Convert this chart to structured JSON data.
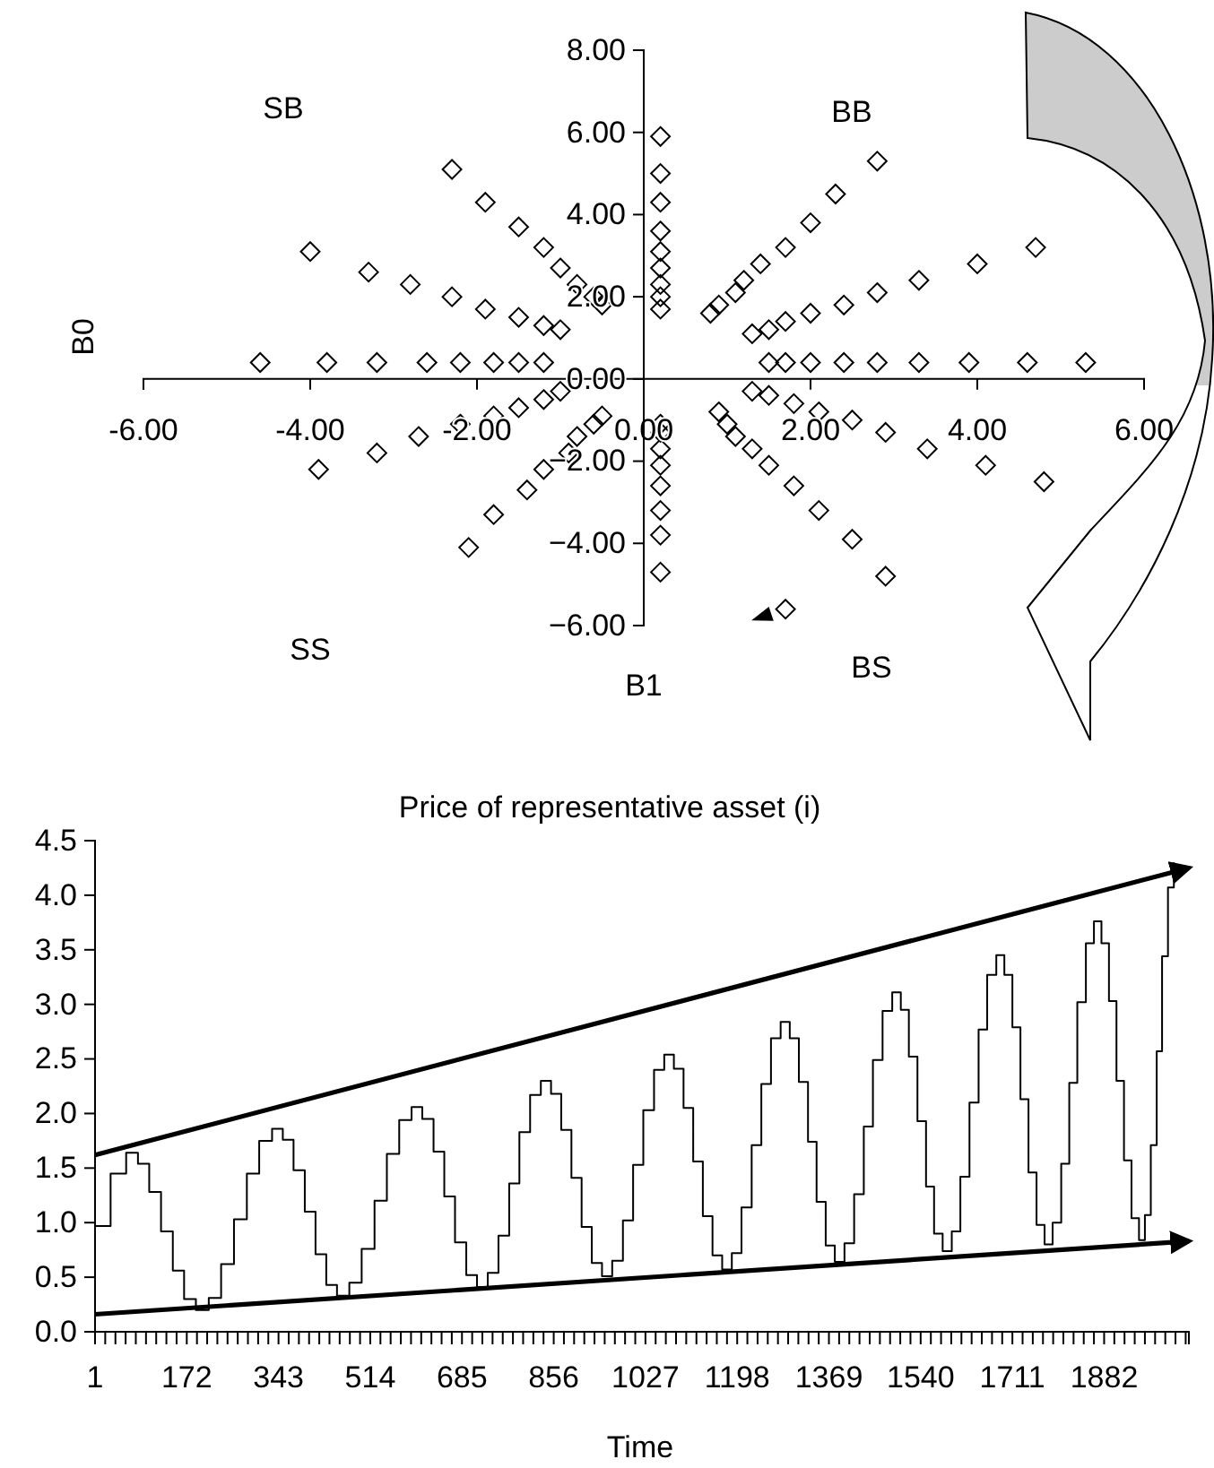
{
  "chart_data": [
    {
      "type": "scatter",
      "xlabel": "B1",
      "ylabel": "B0",
      "marker": "diamond",
      "annotations": [
        "SB",
        "BB",
        "SS",
        "BS"
      ],
      "xlim": [
        -6,
        6
      ],
      "ylim": [
        -6,
        8
      ],
      "xticks": [
        {
          "value": -6,
          "label": "-6.00"
        },
        {
          "value": -4,
          "label": "-4.00"
        },
        {
          "value": -2,
          "label": "-2.00"
        },
        {
          "value": 0,
          "label": "0.00"
        },
        {
          "value": 2,
          "label": "2.00"
        },
        {
          "value": 4,
          "label": "4.00"
        },
        {
          "value": 6,
          "label": "6.00"
        }
      ],
      "yticks": [
        {
          "value": -6,
          "label": "−6.00"
        },
        {
          "value": -4,
          "label": "−4.00"
        },
        {
          "value": -2,
          "label": "−2.00"
        },
        {
          "value": 0,
          "label": "0.00"
        },
        {
          "value": 2,
          "label": "2.00"
        },
        {
          "value": 4,
          "label": "4.00"
        },
        {
          "value": 6,
          "label": "6.00"
        },
        {
          "value": 8,
          "label": "8.00"
        }
      ],
      "series": [
        {
          "color": "#000000",
          "x": [
            0.2,
            0.8,
            1.3,
            1.5,
            1.3,
            0.9,
            0.2,
            -0.5,
            -1.0,
            -1.2,
            -1.0,
            -0.5,
            0.2,
            0.9,
            1.5,
            1.7,
            1.5,
            1.0,
            0.2,
            -0.6,
            -1.2,
            -1.5,
            -1.2,
            -0.6,
            0.2,
            1.1,
            1.7,
            2.0,
            1.8,
            1.1,
            0.2,
            -0.8,
            -1.5,
            -1.8,
            -1.5,
            -0.8,
            0.2,
            1.2,
            2.0,
            2.4,
            2.1,
            1.3,
            0.2,
            -0.9,
            -1.8,
            -2.2,
            -1.9,
            -1.0,
            0.2,
            1.4,
            2.4,
            2.8,
            2.5,
            1.5,
            0.2,
            -1.2,
            -2.2,
            -2.6,
            -2.3,
            -1.2,
            0.2,
            1.7,
            2.8,
            3.3,
            2.9,
            1.8,
            0.2,
            -1.4,
            -2.7,
            -3.2,
            -2.8,
            -1.5,
            0.2,
            2.0,
            3.3,
            3.9,
            3.4,
            2.1,
            0.2,
            -1.8,
            -3.2,
            -3.8,
            -3.3,
            -1.9,
            0.2,
            2.3,
            4.0,
            4.6,
            4.1,
            2.5,
            0.2,
            -2.1,
            -3.9,
            -4.6,
            -4.0,
            -2.3,
            0.2,
            2.8,
            4.7,
            5.3,
            4.8,
            2.9,
            1.7
          ],
          "values": [
            1.7,
            1.6,
            1.1,
            0.4,
            -0.3,
            -0.8,
            -1.1,
            -0.9,
            -0.3,
            0.4,
            1.2,
            1.8,
            2.0,
            1.8,
            1.2,
            0.4,
            -0.4,
            -1.1,
            -1.3,
            -1.1,
            -0.5,
            0.4,
            1.3,
            2.0,
            2.3,
            2.1,
            1.4,
            0.4,
            -0.6,
            -1.4,
            -1.7,
            -1.4,
            -0.7,
            0.4,
            1.5,
            2.3,
            2.7,
            2.4,
            1.6,
            0.4,
            -0.8,
            -1.7,
            -2.1,
            -1.8,
            -0.9,
            0.4,
            1.7,
            2.7,
            3.1,
            2.8,
            1.8,
            0.4,
            -1.0,
            -2.1,
            -2.6,
            -2.2,
            -1.1,
            0.4,
            2.0,
            3.2,
            3.6,
            3.2,
            2.1,
            0.4,
            -1.3,
            -2.6,
            -3.2,
            -2.7,
            -1.4,
            0.4,
            2.3,
            3.7,
            4.3,
            3.8,
            2.4,
            0.4,
            -1.7,
            -3.2,
            -3.8,
            -3.3,
            -1.8,
            0.4,
            2.6,
            4.3,
            5.0,
            4.5,
            2.8,
            0.4,
            -2.1,
            -3.9,
            -4.7,
            -4.1,
            -2.2,
            0.4,
            3.1,
            5.1,
            5.9,
            5.3,
            3.2,
            0.4,
            -2.5,
            -4.8,
            -5.6
          ]
        }
      ]
    },
    {
      "type": "step",
      "title": "Price of representative asset (i)",
      "xlabel": "Time",
      "xlim": [
        1,
        2040
      ],
      "ylim": [
        0,
        4.5
      ],
      "xticks": [
        1,
        {
          "value": 20,
          "label": null
        },
        {
          "value": 39,
          "label": null
        },
        {
          "value": 58,
          "label": null
        },
        {
          "value": 77,
          "label": null
        },
        {
          "value": 96,
          "label": null
        },
        {
          "value": 115,
          "label": null
        },
        {
          "value": 134,
          "label": null
        },
        {
          "value": 153,
          "label": null
        },
        172,
        {
          "value": 191,
          "label": null
        },
        {
          "value": 210,
          "label": null
        },
        {
          "value": 229,
          "label": null
        },
        {
          "value": 248,
          "label": null
        },
        {
          "value": 267,
          "label": null
        },
        {
          "value": 286,
          "label": null
        },
        {
          "value": 305,
          "label": null
        },
        {
          "value": 324,
          "label": null
        },
        343,
        {
          "value": 362,
          "label": null
        },
        {
          "value": 381,
          "label": null
        },
        {
          "value": 400,
          "label": null
        },
        {
          "value": 419,
          "label": null
        },
        {
          "value": 438,
          "label": null
        },
        {
          "value": 457,
          "label": null
        },
        {
          "value": 476,
          "label": null
        },
        {
          "value": 495,
          "label": null
        },
        514,
        {
          "value": 533,
          "label": null
        },
        {
          "value": 552,
          "label": null
        },
        {
          "value": 571,
          "label": null
        },
        {
          "value": 590,
          "label": null
        },
        {
          "value": 609,
          "label": null
        },
        {
          "value": 628,
          "label": null
        },
        {
          "value": 647,
          "label": null
        },
        {
          "value": 666,
          "label": null
        },
        685,
        {
          "value": 704,
          "label": null
        },
        {
          "value": 723,
          "label": null
        },
        {
          "value": 742,
          "label": null
        },
        {
          "value": 761,
          "label": null
        },
        {
          "value": 780,
          "label": null
        },
        {
          "value": 799,
          "label": null
        },
        {
          "value": 818,
          "label": null
        },
        {
          "value": 837,
          "label": null
        },
        856,
        {
          "value": 875,
          "label": null
        },
        {
          "value": 894,
          "label": null
        },
        {
          "value": 913,
          "label": null
        },
        {
          "value": 932,
          "label": null
        },
        {
          "value": 951,
          "label": null
        },
        {
          "value": 970,
          "label": null
        },
        {
          "value": 989,
          "label": null
        },
        {
          "value": 1008,
          "label": null
        },
        1027,
        {
          "value": 1046,
          "label": null
        },
        {
          "value": 1065,
          "label": null
        },
        {
          "value": 1084,
          "label": null
        },
        {
          "value": 1103,
          "label": null
        },
        {
          "value": 1122,
          "label": null
        },
        {
          "value": 1141,
          "label": null
        },
        {
          "value": 1160,
          "label": null
        },
        {
          "value": 1179,
          "label": null
        },
        1198,
        {
          "value": 1217,
          "label": null
        },
        {
          "value": 1236,
          "label": null
        },
        {
          "value": 1255,
          "label": null
        },
        {
          "value": 1274,
          "label": null
        },
        {
          "value": 1293,
          "label": null
        },
        {
          "value": 1312,
          "label": null
        },
        {
          "value": 1331,
          "label": null
        },
        {
          "value": 1350,
          "label": null
        },
        1369,
        {
          "value": 1388,
          "label": null
        },
        {
          "value": 1407,
          "label": null
        },
        {
          "value": 1426,
          "label": null
        },
        {
          "value": 1445,
          "label": null
        },
        {
          "value": 1464,
          "label": null
        },
        {
          "value": 1483,
          "label": null
        },
        {
          "value": 1502,
          "label": null
        },
        {
          "value": 1521,
          "label": null
        },
        1540,
        {
          "value": 1559,
          "label": null
        },
        {
          "value": 1578,
          "label": null
        },
        {
          "value": 1597,
          "label": null
        },
        {
          "value": 1616,
          "label": null
        },
        {
          "value": 1635,
          "label": null
        },
        {
          "value": 1654,
          "label": null
        },
        {
          "value": 1673,
          "label": null
        },
        {
          "value": 1692,
          "label": null
        },
        1711,
        {
          "value": 1730,
          "label": null
        },
        {
          "value": 1749,
          "label": null
        },
        {
          "value": 1768,
          "label": null
        },
        {
          "value": 1787,
          "label": null
        },
        {
          "value": 1806,
          "label": null
        },
        {
          "value": 1825,
          "label": null
        },
        {
          "value": 1844,
          "label": null
        },
        {
          "value": 1863,
          "label": null
        },
        1882,
        {
          "value": 1901,
          "label": null
        },
        {
          "value": 1920,
          "label": null
        },
        {
          "value": 1939,
          "label": null
        },
        {
          "value": 1958,
          "label": null
        },
        {
          "value": 1977,
          "label": null
        },
        {
          "value": 1996,
          "label": null
        },
        {
          "value": 2015,
          "label": null
        },
        {
          "value": 2034,
          "label": null
        }
      ],
      "yticks": [
        {
          "value": 0,
          "label": "0.0"
        },
        0.5,
        {
          "value": 1,
          "label": "1.0"
        },
        1.5,
        {
          "value": 2,
          "label": "2.0"
        },
        2.5,
        {
          "value": 3,
          "label": "3.0"
        },
        3.5,
        {
          "value": 4,
          "label": "4.0"
        },
        4.5
      ],
      "series": [
        {
          "color": "#000000",
          "x": [
            1,
            30,
            59,
            81,
            102,
            124,
            146,
            167,
            189,
            213,
            236,
            260,
            284,
            307,
            331,
            351,
            371,
            392,
            412,
            432,
            452,
            475,
            498,
            522,
            545,
            568,
            591,
            611,
            632,
            652,
            672,
            693,
            713,
            733,
            753,
            773,
            792,
            812,
            832,
            851,
            870,
            889,
            908,
            927,
            946,
            965,
            985,
            1004,
            1023,
            1043,
            1062,
            1080,
            1098,
            1116,
            1134,
            1152,
            1170,
            1188,
            1206,
            1225,
            1243,
            1261,
            1279,
            1296,
            1313,
            1330,
            1346,
            1363,
            1380,
            1398,
            1416,
            1434,
            1451,
            1469,
            1487,
            1503,
            1518,
            1534,
            1550,
            1565,
            1581,
            1598,
            1614,
            1631,
            1648,
            1664,
            1681,
            1696,
            1711,
            1726,
            1741,
            1756,
            1771,
            1786,
            1802,
            1817,
            1832,
            1848,
            1863,
            1877,
            1891,
            1905,
            1919,
            1933,
            1947,
            1958,
            1969,
            1980,
            1990,
            2001,
            2012
          ],
          "values": [
            0.97,
            1.45,
            1.64,
            1.54,
            1.28,
            0.92,
            0.56,
            0.3,
            0.2,
            0.31,
            0.62,
            1.03,
            1.45,
            1.75,
            1.86,
            1.76,
            1.48,
            1.1,
            0.71,
            0.43,
            0.33,
            0.45,
            0.76,
            1.2,
            1.63,
            1.94,
            2.06,
            1.95,
            1.65,
            1.24,
            0.82,
            0.52,
            0.41,
            0.54,
            0.88,
            1.36,
            1.83,
            2.17,
            2.3,
            2.18,
            1.85,
            1.41,
            0.96,
            0.63,
            0.51,
            0.65,
            1.02,
            1.53,
            2.03,
            2.4,
            2.54,
            2.41,
            2.05,
            1.56,
            1.06,
            0.7,
            0.57,
            0.72,
            1.14,
            1.71,
            2.27,
            2.69,
            2.84,
            2.69,
            2.29,
            1.74,
            1.19,
            0.79,
            0.64,
            0.81,
            1.26,
            1.88,
            2.49,
            2.94,
            3.11,
            2.95,
            2.52,
            1.93,
            1.33,
            0.9,
            0.74,
            0.92,
            1.42,
            2.1,
            2.77,
            3.27,
            3.45,
            3.27,
            2.79,
            2.13,
            1.46,
            0.98,
            0.8,
            1.0,
            1.54,
            2.28,
            3.02,
            3.56,
            3.76,
            3.56,
            3.03,
            2.3,
            1.57,
            1.04,
            0.84,
            1.07,
            1.71,
            2.57,
            3.44,
            4.07,
            4.3
          ]
        },
        {
          "type": "line",
          "color": "#000000",
          "x": [
            1,
            2040
          ],
          "values": [
            1.62,
            4.25
          ]
        },
        {
          "type": "line",
          "color": "#000000",
          "x": [
            1,
            2040
          ],
          "values": [
            0.16,
            0.83
          ]
        }
      ]
    }
  ]
}
